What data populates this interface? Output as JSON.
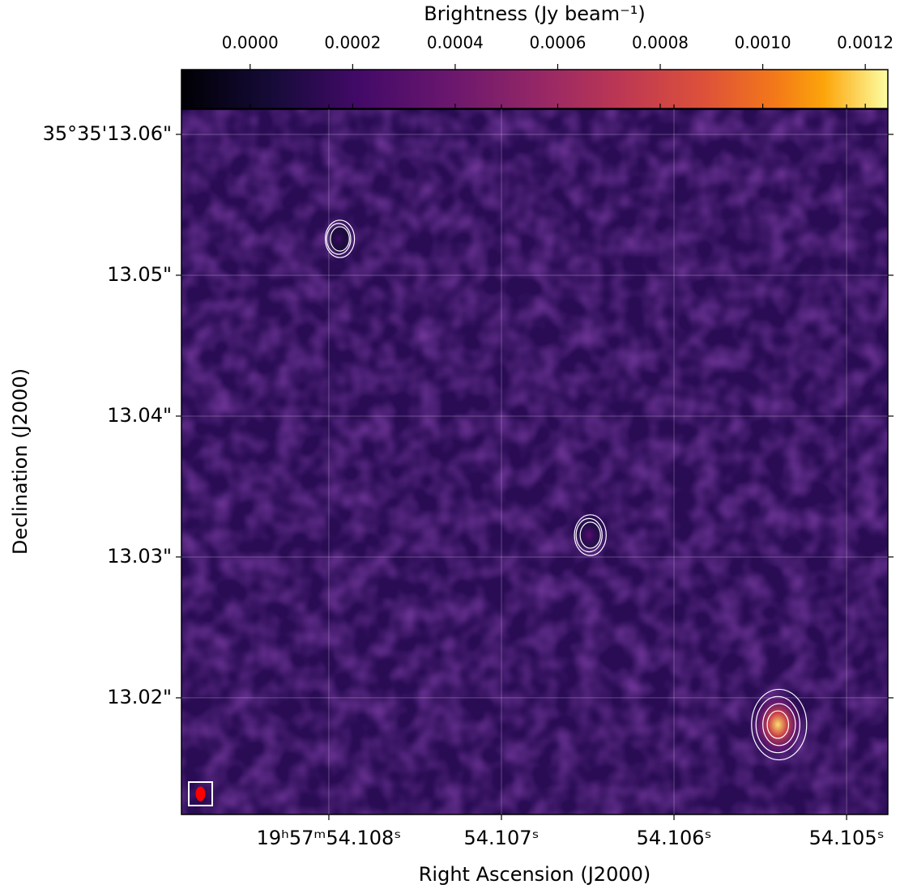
{
  "chart_data": {
    "type": "image",
    "colorbar_label": "Brightness (Jy beam⁻¹)",
    "clim": [
      -0.000134,
      0.001244
    ],
    "cticks": [
      {
        "value": 0.0,
        "label": "0.0000"
      },
      {
        "value": 0.0002,
        "label": "0.0002"
      },
      {
        "value": 0.0004,
        "label": "0.0004"
      },
      {
        "value": 0.0006,
        "label": "0.0006"
      },
      {
        "value": 0.0008,
        "label": "0.0008"
      },
      {
        "value": 0.001,
        "label": "0.0010"
      },
      {
        "value": 0.0012,
        "label": "0.0012"
      }
    ],
    "x_label": "Right Ascension (J2000)",
    "y_label": "Declination (J2000)",
    "xlim": [
      54.108854,
      54.104761
    ],
    "xticks": [
      {
        "value": 54.108,
        "label": "19ʰ57ᵐ54.108ˢ"
      },
      {
        "value": 54.107,
        "label": "54.107ˢ"
      },
      {
        "value": 54.106,
        "label": "54.106ˢ"
      },
      {
        "value": 54.105,
        "label": "54.105ˢ"
      }
    ],
    "ylim": [
      13.01172,
      13.06178
    ],
    "yticks": [
      {
        "value": 13.06,
        "label": "35°35'13.06\""
      },
      {
        "value": 13.05,
        "label": "13.05\""
      },
      {
        "value": 13.04,
        "label": "13.04\""
      },
      {
        "value": 13.03,
        "label": "13.03\""
      },
      {
        "value": 13.02,
        "label": "13.02\""
      }
    ],
    "x": [
      54.107943,
      54.106492,
      54.105398
    ],
    "y": [
      13.05258,
      13.03155,
      13.0181
    ],
    "values": [
      0.0002,
      0.0003,
      0.0012
    ],
    "grid": true
  }
}
